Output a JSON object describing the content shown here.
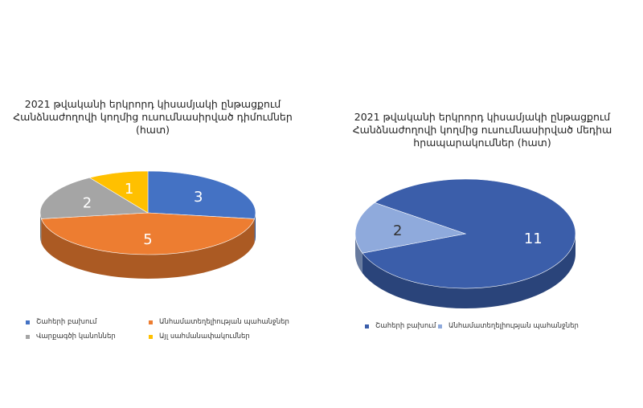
{
  "charts": [
    {
      "title_lines": [
        "2021 թվականի երկրորդ կիսամյակի ընթացքում",
        "Հանձնաժողովի կողմից ուսումնասիրված դիմումներ",
        "(հատ)"
      ],
      "chart_data": {
        "type": "pie",
        "categories": [
          "Շահերի բախում",
          "Անհամատեղելիության պահանջներ",
          "Վարքագծի կանոններ",
          "Այլ սահմանափակումներ"
        ],
        "values": [
          3,
          5,
          2,
          1
        ],
        "colors": [
          "#4472C4",
          "#ED7D31",
          "#A5A5A5",
          "#FFC000"
        ],
        "legend_position": "bottom",
        "three_d": true
      }
    },
    {
      "title_lines": [
        "2021 թվականի երկրորդ կիսամյակի ընթացքում",
        "Հանձնաժողովի կողմից ուսումնասիրված մեդիա",
        "հրապարակումներ (հատ)"
      ],
      "chart_data": {
        "type": "pie",
        "categories": [
          "Շահերի բախում",
          "Անհամատեղելիության պահանջներ"
        ],
        "values": [
          11,
          2
        ],
        "colors": [
          "#3B5EAA",
          "#8FAADC"
        ],
        "legend_position": "bottom",
        "three_d": true
      }
    }
  ]
}
